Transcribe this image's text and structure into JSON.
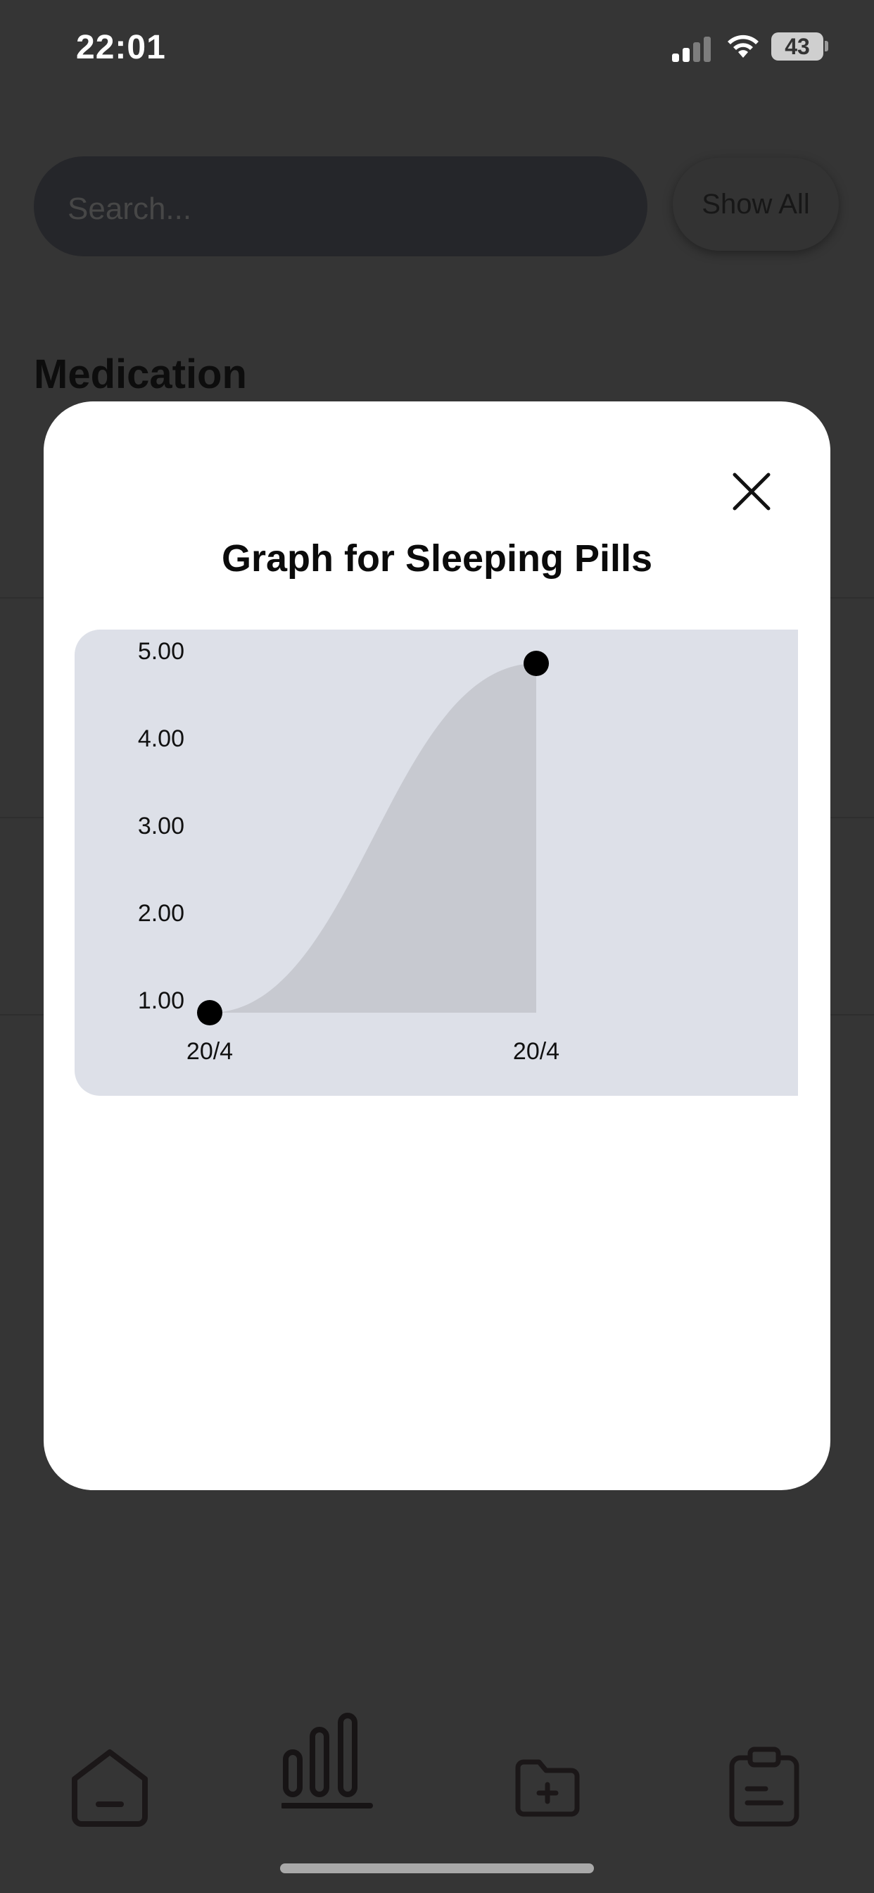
{
  "status_bar": {
    "time": "22:01",
    "battery": "43"
  },
  "search": {
    "placeholder": "Search..."
  },
  "show_all_label": "Show All",
  "sections": [
    {
      "title": "Medication"
    }
  ],
  "modal": {
    "title": "Graph for Sleeping Pills"
  },
  "chart_data": {
    "type": "area",
    "title": "Graph for Sleeping Pills",
    "x": [
      "20/4",
      "20/4"
    ],
    "y": [
      1.0,
      5.0
    ],
    "ylim": [
      1.0,
      5.0
    ],
    "y_ticks": [
      "1.00",
      "2.00",
      "3.00",
      "4.00",
      "5.00"
    ],
    "x_ticks": [
      "20/4",
      "20/4"
    ],
    "xlabel": "",
    "ylabel": "",
    "grid": false,
    "colors": {
      "background": "#dde0e8",
      "area": "#c7c9d0",
      "point": "#000000"
    }
  },
  "nav": {
    "items": [
      {
        "icon": "home-icon"
      },
      {
        "icon": "chart-icon"
      },
      {
        "icon": "add-folder-icon"
      },
      {
        "icon": "clipboard-icon"
      }
    ]
  }
}
